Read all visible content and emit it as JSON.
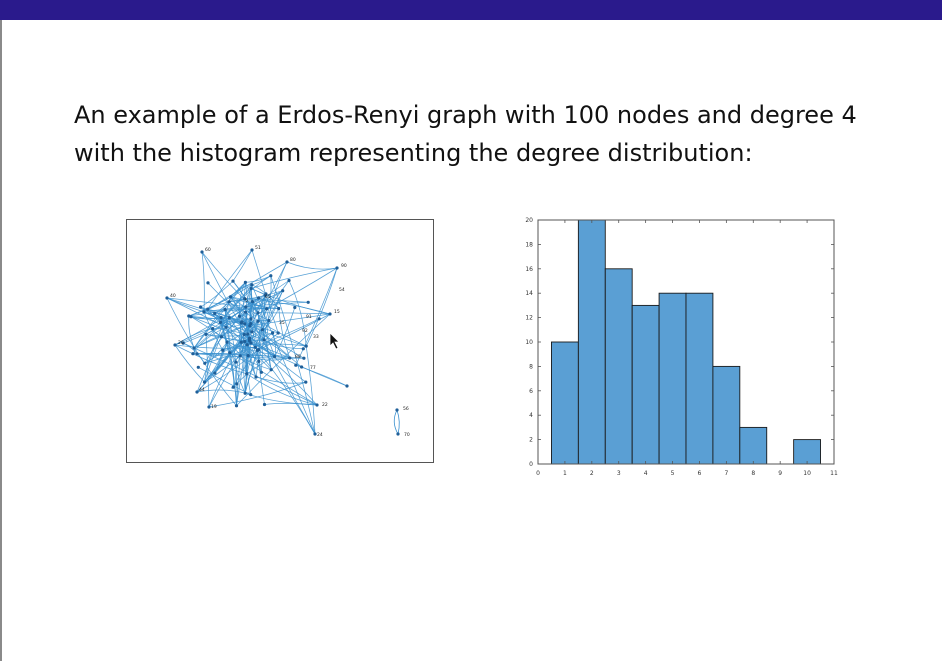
{
  "slide": {
    "line1": "An example of a Erdos-Renyi graph with 100 nodes and degree 4",
    "line2": "with the histogram representing the degree distribution:"
  },
  "graph": {
    "node_labels": [
      "60",
      "51",
      "80",
      "90",
      "54",
      "15",
      "40",
      "26",
      "33",
      "92",
      "91",
      "35",
      "77",
      "24",
      "56",
      "70",
      "44",
      "19",
      "22",
      "65",
      "5",
      "88"
    ],
    "isolated_labels": [
      "56",
      "70"
    ]
  },
  "chart_data": {
    "type": "bar",
    "title": "",
    "xlabel": "",
    "ylabel": "",
    "x": [
      1,
      2,
      3,
      4,
      5,
      6,
      7,
      8,
      9,
      10
    ],
    "values": [
      10,
      20,
      16,
      13,
      14,
      14,
      8,
      3,
      0,
      2
    ],
    "xlim": [
      0,
      11
    ],
    "ylim": [
      0,
      20
    ],
    "xticks": [
      0,
      1,
      2,
      3,
      4,
      5,
      6,
      7,
      8,
      9,
      10,
      11
    ],
    "yticks": [
      0,
      2,
      4,
      6,
      8,
      10,
      12,
      14,
      16,
      18,
      20
    ],
    "bar_color": "#5a9fd4",
    "grid": false
  }
}
